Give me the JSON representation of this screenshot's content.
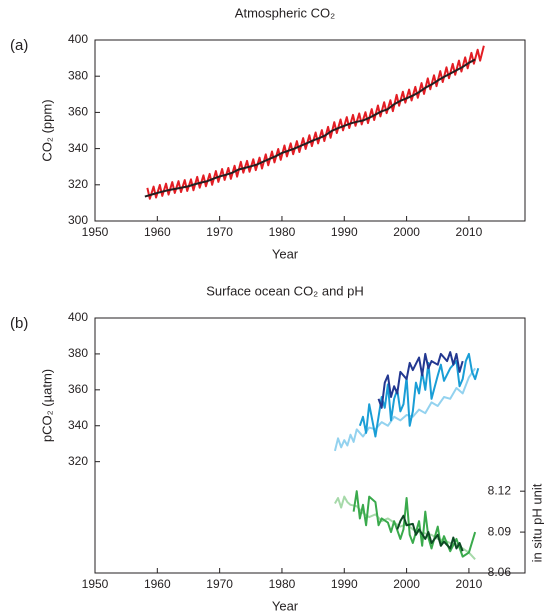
{
  "chart_data": [
    {
      "type": "line",
      "panel_label": "(a)",
      "title": "Atmospheric CO₂",
      "xlabel": "Year",
      "ylabel": "CO₂ (ppm)",
      "xlim": [
        1950,
        2019
      ],
      "xticks": [
        1950,
        1960,
        1970,
        1980,
        1990,
        2000,
        2010
      ],
      "ylim": [
        300,
        400
      ],
      "yticks": [
        300,
        320,
        340,
        360,
        380,
        400
      ],
      "series": [
        {
          "color": "#e31d24",
          "x": [
            1958.4,
            1958.8,
            1959.4,
            1959.8,
            1960.4,
            1960.8,
            1961.4,
            1961.8,
            1962.4,
            1962.8,
            1963.4,
            1963.8,
            1964.4,
            1964.8,
            1965.4,
            1965.8,
            1966.4,
            1966.8,
            1967.4,
            1967.8,
            1968.4,
            1968.8,
            1969.4,
            1969.8,
            1970.4,
            1970.8,
            1971.4,
            1971.8,
            1972.4,
            1972.8,
            1973.4,
            1973.8,
            1974.4,
            1974.8,
            1975.4,
            1975.8,
            1976.4,
            1976.8,
            1977.4,
            1977.8,
            1978.4,
            1978.8,
            1979.4,
            1979.8,
            1980.4,
            1980.8,
            1981.4,
            1981.8,
            1982.4,
            1982.8,
            1983.4,
            1983.8,
            1984.4,
            1984.8,
            1985.4,
            1985.8,
            1986.4,
            1986.8,
            1987.4,
            1987.8,
            1988.4,
            1988.8,
            1989.4,
            1989.8,
            1990.4,
            1990.8,
            1991.4,
            1991.8,
            1992.4,
            1992.8,
            1993.4,
            1993.8,
            1994.4,
            1994.8,
            1995.4,
            1995.8,
            1996.4,
            1996.8,
            1997.4,
            1997.8,
            1998.4,
            1998.8,
            1999.4,
            1999.8,
            2000.4,
            2000.8,
            2001.4,
            2001.8,
            2002.4,
            2002.8,
            2003.4,
            2003.8,
            2004.4,
            2004.8,
            2005.4,
            2005.8,
            2006.4,
            2006.8,
            2007.4,
            2007.8,
            2008.4,
            2008.8,
            2009.4,
            2009.8,
            2010.4,
            2010.8,
            2011.4,
            2011.8,
            2012.4
          ],
          "values": [
            318.3,
            312.3,
            319.0,
            313.0,
            319.9,
            313.9,
            320.6,
            314.6,
            321.5,
            315.5,
            322.0,
            316.0,
            322.6,
            316.6,
            323.0,
            317.0,
            324.4,
            318.4,
            325.2,
            319.2,
            326.0,
            320.0,
            327.6,
            321.6,
            328.7,
            322.7,
            329.3,
            323.3,
            330.5,
            324.5,
            332.7,
            326.7,
            333.2,
            327.2,
            334.1,
            328.1,
            335.0,
            329.0,
            336.8,
            330.8,
            338.4,
            332.4,
            339.8,
            333.8,
            341.7,
            335.7,
            342.9,
            336.9,
            344.1,
            338.1,
            345.8,
            339.8,
            347.4,
            341.4,
            348.9,
            342.9,
            350.2,
            344.2,
            352.0,
            346.0,
            354.6,
            348.6,
            356.1,
            350.1,
            357.4,
            351.4,
            358.6,
            352.6,
            359.4,
            353.4,
            360.1,
            354.1,
            361.8,
            355.8,
            363.8,
            357.8,
            365.6,
            359.6,
            366.7,
            360.7,
            369.7,
            363.7,
            371.4,
            365.4,
            372.6,
            366.6,
            374.1,
            368.1,
            376.2,
            370.2,
            378.8,
            372.8,
            380.5,
            374.5,
            382.8,
            376.8,
            384.9,
            378.9,
            386.8,
            380.8,
            388.6,
            382.6,
            390.4,
            384.4,
            392.9,
            386.9,
            394.6,
            388.6,
            396.8
          ]
        },
        {
          "color": "#231f20",
          "x": [
            1958,
            1959,
            1960,
            1961,
            1962,
            1963,
            1964,
            1965,
            1966,
            1967,
            1968,
            1969,
            1970,
            1971,
            1972,
            1973,
            1974,
            1975,
            1976,
            1977,
            1978,
            1979,
            1980,
            1981,
            1982,
            1983,
            1984,
            1985,
            1986,
            1987,
            1988,
            1989,
            1990,
            1991,
            1992,
            1993,
            1994,
            1995,
            1996,
            1997,
            1998,
            1999,
            2000,
            2001,
            2002,
            2003,
            2004,
            2005,
            2006,
            2007,
            2008,
            2009,
            2010,
            2011
          ],
          "values": [
            313.5,
            314.5,
            315.5,
            316.4,
            317.2,
            317.8,
            318.5,
            319.2,
            320.3,
            321.2,
            322.0,
            323.4,
            324.6,
            325.5,
            326.6,
            328.4,
            329.3,
            330.2,
            331.2,
            332.8,
            334.3,
            335.8,
            337.6,
            338.8,
            340.0,
            341.5,
            343.0,
            344.5,
            345.8,
            347.4,
            349.8,
            351.3,
            352.6,
            353.9,
            354.8,
            355.5,
            357.0,
            358.8,
            360.6,
            361.8,
            364.5,
            366.4,
            367.8,
            369.3,
            371.2,
            373.6,
            375.4,
            377.6,
            379.6,
            381.4,
            383.3,
            385.1,
            387.4,
            389.2
          ]
        }
      ]
    },
    {
      "type": "line",
      "panel_label": "(b)",
      "title": "Surface ocean CO₂ and pH",
      "xlabel": "Year",
      "ylabel": "pCO₂ (µatm)",
      "y2label": "in situ pH unit",
      "xlim": [
        1950,
        2019
      ],
      "xticks": [
        1950,
        1960,
        1970,
        1980,
        1990,
        2000,
        2010
      ],
      "ylim": [
        258,
        400
      ],
      "yticks": [
        320,
        340,
        360,
        380,
        400
      ],
      "y2lim": [
        8.06,
        8.247
      ],
      "y2ticks": [
        8.06,
        8.09,
        8.12
      ],
      "series": [
        {
          "color": "#93d2ef",
          "x": [
            1988.5,
            1989,
            1989.5,
            1990,
            1990.5,
            1991,
            1991.5,
            1992,
            1993,
            1994,
            1995,
            1996,
            1997,
            1998,
            1999,
            2000,
            2001,
            2002,
            2003,
            2004,
            2005,
            2006,
            2007,
            2008,
            2009,
            2010,
            2011
          ],
          "values": [
            326,
            333,
            328,
            332,
            329,
            335,
            331,
            338,
            334,
            339,
            338,
            342,
            340,
            345,
            343,
            346,
            345,
            349,
            347,
            353,
            351,
            356,
            355,
            361,
            358,
            367,
            372
          ]
        },
        {
          "color": "#1a9ed6",
          "x": [
            1992.5,
            1993,
            1993.5,
            1994,
            1995,
            1995.5,
            1996,
            1996.5,
            1997,
            1997.5,
            1998,
            1998.5,
            1999,
            1999.5,
            2000,
            2000.5,
            2001,
            2001.5,
            2002,
            2002.5,
            2003,
            2003.5,
            2004,
            2005,
            2005.5,
            2006,
            2007,
            2008,
            2008.5,
            2009,
            2009.5,
            2010,
            2010.5,
            2011,
            2011.5
          ],
          "values": [
            340,
            345,
            336,
            352,
            334,
            345,
            356,
            350,
            363,
            343,
            355,
            360,
            348,
            352,
            367,
            340,
            348,
            364,
            358,
            370,
            360,
            375,
            355,
            368,
            374,
            365,
            372,
            376,
            362,
            366,
            376,
            380,
            370,
            366,
            372
          ]
        },
        {
          "color": "#233891",
          "x": [
            1995.5,
            1996,
            1996.5,
            1997,
            1997.5,
            1998,
            1998.5,
            1999,
            2000,
            2000.5,
            2001,
            2002,
            2002.5,
            2003,
            2003.5,
            2004,
            2005,
            2005.5,
            2006,
            2006.5,
            2007,
            2007.5,
            2008,
            2008.5,
            2009
          ],
          "values": [
            355,
            350,
            364,
            368,
            356,
            362,
            358,
            370,
            366,
            375,
            371,
            378,
            368,
            380,
            372,
            376,
            374,
            380,
            378,
            376,
            381,
            374,
            380,
            370,
            376
          ]
        },
        {
          "color": "#a6d9a9",
          "axis": "y2",
          "x": [
            1988.5,
            1989,
            1989.5,
            1990,
            1990.5,
            1991,
            1992,
            1993,
            1994,
            1995,
            1996,
            1997,
            1998,
            1999,
            2000,
            2001,
            2002,
            2003,
            2004,
            2005,
            2006,
            2007,
            2008,
            2009,
            2010,
            2011
          ],
          "values": [
            8.111,
            8.115,
            8.108,
            8.116,
            8.112,
            8.11,
            8.109,
            8.104,
            8.101,
            8.103,
            8.098,
            8.1,
            8.097,
            8.094,
            8.096,
            8.092,
            8.09,
            8.089,
            8.088,
            8.085,
            8.084,
            8.082,
            8.081,
            8.078,
            8.075,
            8.07
          ]
        },
        {
          "color": "#3aaa4c",
          "axis": "y2",
          "x": [
            1991.5,
            1992,
            1992.5,
            1993,
            1993.5,
            1994,
            1995,
            1995.5,
            1996,
            1997,
            1997.5,
            1998,
            1999,
            1999.5,
            2000,
            2000.5,
            2001,
            2002,
            2002.5,
            2003,
            2003.5,
            2004,
            2005,
            2005.5,
            2006,
            2007,
            2008,
            2009,
            2010,
            2011
          ],
          "values": [
            8.105,
            8.12,
            8.1,
            8.11,
            8.095,
            8.116,
            8.112,
            8.095,
            8.1,
            8.097,
            8.09,
            8.098,
            8.085,
            8.092,
            8.115,
            8.088,
            8.082,
            8.098,
            8.08,
            8.105,
            8.086,
            8.078,
            8.094,
            8.08,
            8.087,
            8.076,
            8.085,
            8.072,
            8.075,
            8.09
          ]
        },
        {
          "color": "#0c4a23",
          "axis": "y2",
          "x": [
            1998.5,
            1999,
            1999.5,
            2000,
            2001,
            2001.5,
            2002,
            2003,
            2003.5,
            2004,
            2005,
            2005.5,
            2006,
            2007,
            2007.5,
            2008,
            2008.5,
            2009
          ],
          "values": [
            8.092,
            8.098,
            8.102,
            8.095,
            8.096,
            8.088,
            8.092,
            8.085,
            8.09,
            8.082,
            8.088,
            8.08,
            8.083,
            8.078,
            8.086,
            8.078,
            8.082,
            8.076
          ]
        }
      ]
    }
  ]
}
